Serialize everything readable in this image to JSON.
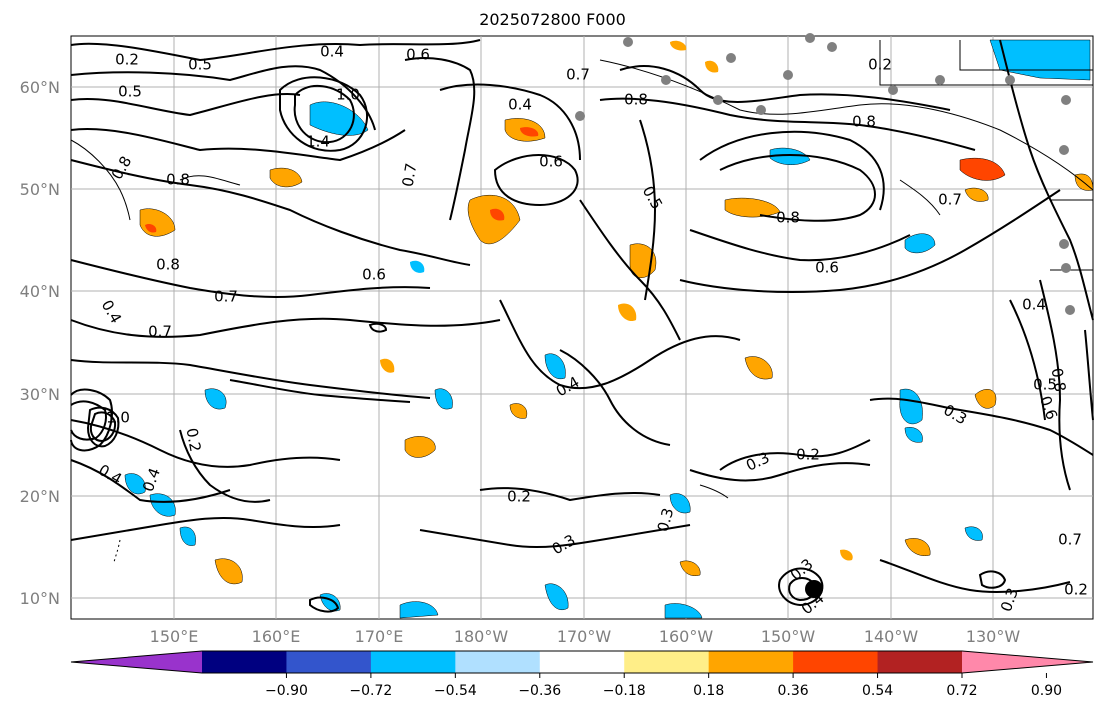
{
  "title": "2025072800 F000",
  "map": {
    "lat_labels": [
      "60°N",
      "50°N",
      "40°N",
      "30°N",
      "20°N",
      "10°N"
    ],
    "lon_labels": [
      "150°E",
      "160°E",
      "170°E",
      "180°W",
      "170°W",
      "160°W",
      "150°W",
      "140°W",
      "130°W"
    ],
    "contour_labels": [
      "0.2",
      "0.4",
      "0.6",
      "0.7",
      "0.5",
      "1.0",
      "1.4",
      "0.8",
      "0.4",
      "0.6",
      "0.7",
      "0.8",
      "0.2",
      "0.5",
      "0.8",
      "0.8",
      "0.6",
      "0.5",
      "0.8",
      "0.7",
      "0.8",
      "0.6",
      "0.7",
      "0.4",
      "0.7",
      "0.4",
      "0.5",
      "0.2",
      "0.3",
      "0.2",
      "0.4",
      "0.3",
      "0.2",
      "0.3",
      "0.3",
      "0.4",
      "0.6",
      "0.8",
      "0.7",
      "0.3",
      "0.2",
      "1.0",
      "0.4",
      "0.4",
      "0.3"
    ]
  },
  "colorbar": {
    "colors": [
      "#9933cc",
      "#000080",
      "#3355cc",
      "#00bfff",
      "#b0e0ff",
      "#ffffff",
      "#ffee88",
      "#ffa500",
      "#ff4500",
      "#b22222",
      "#ff88aa"
    ],
    "labels": [
      "−0.90",
      "−0.72",
      "−0.54",
      "−0.36",
      "−0.18",
      "0.18",
      "0.36",
      "0.54",
      "0.72",
      "0.90"
    ]
  }
}
